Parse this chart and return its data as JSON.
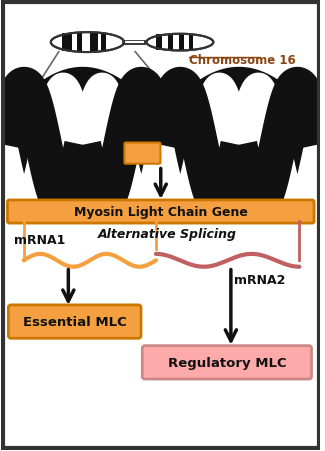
{
  "background_color": "#ffffff",
  "border_color": "#333333",
  "chromosome_label": "Chromosome 16",
  "chromosome_label_color": "#8B4513",
  "dna_color": "#111111",
  "gene_segment_color": "#F5A040",
  "gene_bar_color": "#F5A040",
  "gene_bar_label": "Myosin Light Chain Gene",
  "alt_splicing_label": "Alternative Splicing",
  "mrna1_label": "mRNA1",
  "mrna2_label": "mRNA2",
  "mrna1_color": "#F5A040",
  "mrna2_color": "#C06060",
  "essential_label": "Essential MLC",
  "regulatory_label": "Regulatory MLC",
  "essential_box_color": "#F5A040",
  "regulatory_box_color": "#FFAAAA",
  "arrow_color": "#111111",
  "label_color": "#111111",
  "chr_line_color": "#666666",
  "bracket_orange": "#F5A040",
  "bracket_red": "#C06060",
  "figsize": [
    3.25,
    4.52
  ],
  "dpi": 100
}
